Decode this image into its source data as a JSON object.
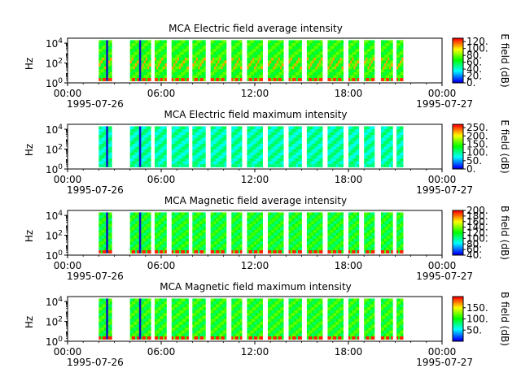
{
  "chart_data": [
    {
      "type": "heatmap",
      "title": "MCA  Electric field average intensity",
      "ylabel": "Hz",
      "yticks": [
        "10^0",
        "10^2",
        "10^4"
      ],
      "ylim": [
        "10^0",
        "10^4.5"
      ],
      "x_ticks": [
        "00:00",
        "06:00",
        "12:00",
        "18:00",
        "00:00"
      ],
      "x_date_left": "1995-07-26",
      "x_date_right": "1995-07-27",
      "colorbar_label": "E field (dB)",
      "colorbar_ticks": [
        "0.",
        "20.",
        "40.",
        "60.",
        "80.",
        "100.",
        "120."
      ],
      "colorbar_range": [
        0,
        130
      ],
      "colormap": "rainbow"
    },
    {
      "type": "heatmap",
      "title": "MCA  Electric field maximum intensity",
      "ylabel": "Hz",
      "yticks": [
        "10^0",
        "10^2",
        "10^4"
      ],
      "ylim": [
        "10^0",
        "10^4.5"
      ],
      "x_ticks": [
        "00:00",
        "06:00",
        "12:00",
        "18:00",
        "00:00"
      ],
      "x_date_left": "1995-07-26",
      "x_date_right": "1995-07-27",
      "colorbar_label": "E field (dB)",
      "colorbar_ticks": [
        "0.",
        "50.",
        "100.",
        "150.",
        "200.",
        "250."
      ],
      "colorbar_range": [
        0,
        270
      ],
      "colormap": "rainbow"
    },
    {
      "type": "heatmap",
      "title": "MCA  Magnetic field average intensity",
      "ylabel": "Hz",
      "yticks": [
        "10^0",
        "10^2",
        "10^4"
      ],
      "ylim": [
        "10^0",
        "10^4.5"
      ],
      "x_ticks": [
        "00:00",
        "06:00",
        "12:00",
        "18:00",
        "00:00"
      ],
      "x_date_left": "1995-07-26",
      "x_date_right": "1995-07-27",
      "colorbar_label": "B field (dB)",
      "colorbar_ticks": [
        "40.",
        "60.",
        "80.",
        "100.",
        "120.",
        "140.",
        "160.",
        "180.",
        "200."
      ],
      "colorbar_range": [
        40,
        200
      ],
      "colormap": "rainbow"
    },
    {
      "type": "heatmap",
      "title": "MCA  Magnetic field maximum intensity",
      "ylabel": "Hz",
      "yticks": [
        "10^0",
        "10^2",
        "10^4"
      ],
      "ylim": [
        "10^0",
        "10^4.5"
      ],
      "x_ticks": [
        "00:00",
        "06:00",
        "12:00",
        "18:00",
        "00:00"
      ],
      "x_date_left": "1995-07-26",
      "x_date_right": "1995-07-27",
      "colorbar_label": "B field (dB)",
      "colorbar_ticks": [
        "50.",
        "100.",
        "150."
      ],
      "colorbar_range": [
        0,
        200
      ],
      "colormap": "rainbow"
    }
  ],
  "data_intervals": [
    [
      "02:00",
      "02:50"
    ],
    [
      "04:00",
      "05:20"
    ],
    [
      "05:35",
      "06:20"
    ],
    [
      "06:40",
      "07:45"
    ],
    [
      "08:00",
      "08:50"
    ],
    [
      "09:10",
      "10:10"
    ],
    [
      "10:30",
      "11:10"
    ],
    [
      "11:30",
      "12:30"
    ],
    [
      "12:50",
      "13:50"
    ],
    [
      "14:10",
      "15:00"
    ],
    [
      "15:20",
      "16:20"
    ],
    [
      "16:40",
      "17:40"
    ],
    [
      "18:00",
      "18:40"
    ],
    [
      "19:00",
      "19:40"
    ],
    [
      "20:05",
      "20:50"
    ],
    [
      "21:05",
      "21:30"
    ]
  ]
}
